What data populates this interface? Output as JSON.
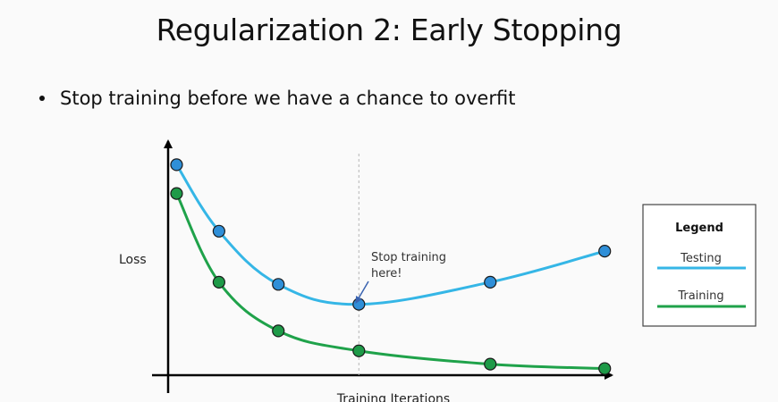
{
  "slide": {
    "title": "Regularization 2: Early Stopping",
    "bullets": [
      "Stop training before we have a chance to overfit"
    ]
  },
  "colors": {
    "testing": "#35b6e6",
    "testing_marker": "#2f8fd8",
    "training": "#1fa24a",
    "training_marker": "#1e9a48"
  },
  "chart_data": {
    "type": "line",
    "xlabel": "Training Iterations",
    "ylabel": "Loss",
    "xlim": [
      0,
      10
    ],
    "ylim": [
      0,
      10
    ],
    "grid": false,
    "legend": {
      "title": "Legend",
      "placement": "right",
      "entries": [
        "Testing",
        "Training"
      ]
    },
    "series": [
      {
        "name": "Testing",
        "points": [
          [
            0.2,
            9.5
          ],
          [
            1.2,
            6.5
          ],
          [
            2.6,
            4.1
          ],
          [
            4.5,
            3.2
          ],
          [
            7.6,
            4.2
          ],
          [
            10.3,
            5.6
          ]
        ]
      },
      {
        "name": "Training",
        "points": [
          [
            0.2,
            8.2
          ],
          [
            1.2,
            4.2
          ],
          [
            2.6,
            2.0
          ],
          [
            4.5,
            1.1
          ],
          [
            7.6,
            0.5
          ],
          [
            10.3,
            0.3
          ]
        ]
      }
    ],
    "stop_x": 4.5,
    "annotation": {
      "line1": "Stop training",
      "line2": "here!"
    }
  }
}
